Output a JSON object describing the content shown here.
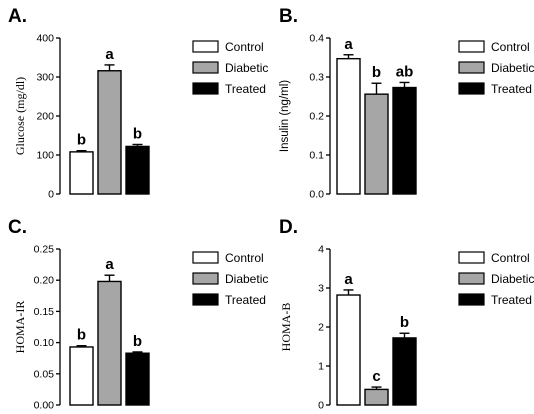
{
  "colors": {
    "Control": "#ffffff",
    "Diabetic": "#a6a6a6",
    "Treated": "#000000",
    "axis": "#000000"
  },
  "chart_data": [
    {
      "panel": "A.",
      "type": "bar",
      "ylabel": "Glucose (mg/dl)",
      "ylabel_font": "serif",
      "ylim": [
        0,
        400
      ],
      "yticks": [
        0,
        100,
        200,
        300,
        400
      ],
      "ytick_labels": [
        "0",
        "100",
        "200",
        "300",
        "400"
      ],
      "categories": [
        "Control",
        "Diabetic",
        "Treated"
      ],
      "values": [
        108,
        316,
        122
      ],
      "errors": [
        3,
        15,
        5
      ],
      "letters": [
        "b",
        "a",
        "b"
      ]
    },
    {
      "panel": "B.",
      "type": "bar",
      "ylabel": "Insulin (ng/ml)",
      "ylabel_font": "sans",
      "ylim": [
        0,
        0.4
      ],
      "yticks": [
        0,
        0.1,
        0.2,
        0.3,
        0.4
      ],
      "ytick_labels": [
        "0.0",
        "0.1",
        "0.2",
        "0.3",
        "0.4"
      ],
      "categories": [
        "Control",
        "Diabetic",
        "Treated"
      ],
      "values": [
        0.347,
        0.256,
        0.273
      ],
      "errors": [
        0.01,
        0.028,
        0.013
      ],
      "letters": [
        "a",
        "b",
        "ab"
      ]
    },
    {
      "panel": "C.",
      "type": "bar",
      "ylabel": "HOMA-IR",
      "ylabel_font": "serif",
      "ylim": [
        0,
        0.25
      ],
      "yticks": [
        0,
        0.05,
        0.1,
        0.15,
        0.2,
        0.25
      ],
      "ytick_labels": [
        "0.00",
        "0.05",
        "0.10",
        "0.15",
        "0.20",
        "0.25"
      ],
      "categories": [
        "Control",
        "Diabetic",
        "Treated"
      ],
      "values": [
        0.093,
        0.198,
        0.083
      ],
      "errors": [
        0.002,
        0.01,
        0.002
      ],
      "letters": [
        "b",
        "a",
        "b"
      ]
    },
    {
      "panel": "D.",
      "type": "bar",
      "ylabel": "HOMA-B",
      "ylabel_font": "serif",
      "ylim": [
        0,
        4
      ],
      "yticks": [
        0,
        1,
        2,
        3,
        4
      ],
      "ytick_labels": [
        "0",
        "1",
        "2",
        "3",
        "4"
      ],
      "categories": [
        "Control",
        "Diabetic",
        "Treated"
      ],
      "values": [
        2.82,
        0.4,
        1.72
      ],
      "errors": [
        0.13,
        0.06,
        0.12
      ],
      "letters": [
        "a",
        "c",
        "b"
      ]
    }
  ],
  "legend": [
    "Control",
    "Diabetic",
    "Treated"
  ]
}
